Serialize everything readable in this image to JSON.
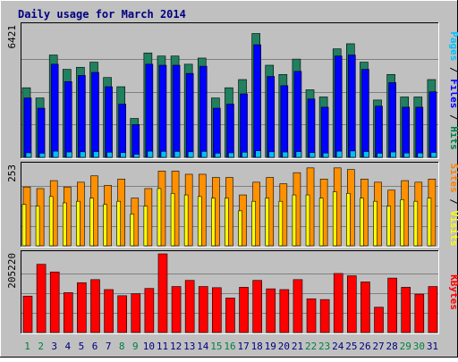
{
  "chart_data": {
    "title": "Daily usage for March 2014",
    "type": "bar",
    "x": [
      "1",
      "2",
      "3",
      "4",
      "5",
      "6",
      "7",
      "8",
      "9",
      "10",
      "11",
      "12",
      "13",
      "14",
      "15",
      "16",
      "17",
      "18",
      "19",
      "20",
      "21",
      "22",
      "23",
      "24",
      "25",
      "26",
      "27",
      "28",
      "29",
      "30",
      "31"
    ],
    "weekend_days": [
      1,
      2,
      8,
      9,
      15,
      16,
      22,
      23,
      29,
      30
    ],
    "weekend_color": "#008040",
    "weekday_color": "#000080",
    "panels": [
      {
        "id": "top",
        "max_label": "6421",
        "ylim": [
          0,
          6421
        ],
        "labels": [
          {
            "text": "Pages",
            "color": "#00C0FF"
          },
          {
            "text": "Files",
            "color": "#0000FF"
          },
          {
            "text": "Hits",
            "color": "#008040"
          }
        ],
        "series": [
          {
            "name": "Hits",
            "color": "#208060",
            "values": [
              3400,
              2900,
              5000,
              4300,
              4400,
              4650,
              3900,
              3450,
              1900,
              5100,
              4950,
              4950,
              4550,
              4850,
              2900,
              3400,
              3800,
              6050,
              4500,
              4050,
              4800,
              3300,
              2950,
              5300,
              5550,
              4650,
              2800,
              4050,
              2950,
              2950,
              3800
            ]
          },
          {
            "name": "Files",
            "color": "#0000FF",
            "values": [
              2900,
              2400,
              4550,
              3700,
              4000,
              4150,
              3450,
              2600,
              1600,
              4550,
              4500,
              4500,
              4100,
              4450,
              2400,
              2600,
              3100,
              5500,
              3950,
              3500,
              4200,
              2850,
              2450,
              4950,
              5000,
              4300,
              2500,
              3650,
              2450,
              2450,
              3200
            ]
          },
          {
            "name": "Pages",
            "color": "#00C0FF",
            "values": [
              220,
              200,
              300,
              260,
              270,
              280,
              250,
              230,
              150,
              300,
              290,
              290,
              270,
              290,
              200,
              220,
              250,
              320,
              270,
              260,
              280,
              230,
              210,
              300,
              310,
              280,
              200,
              260,
              210,
              210,
              240
            ]
          }
        ]
      },
      {
        "id": "middle",
        "max_label": "253",
        "ylim": [
          0,
          253
        ],
        "labels": [
          {
            "text": "Sites",
            "color": "#FF8000"
          },
          {
            "text": "Visits",
            "color": "#FFFF00"
          }
        ],
        "series": [
          {
            "name": "Visits",
            "color": "#FF9000",
            "values": [
              185,
              180,
              205,
              185,
              200,
              220,
              190,
              210,
              150,
              180,
              235,
              235,
              225,
              225,
              215,
              215,
              160,
              200,
              215,
              195,
              230,
              245,
              210,
              245,
              240,
              210,
              200,
              175,
              205,
              200,
              210
            ]
          },
          {
            "name": "Sites",
            "color": "#FFFF00",
            "values": [
              130,
              125,
              155,
              135,
              140,
              150,
              130,
              140,
              100,
              125,
              180,
              165,
              160,
              155,
              150,
              150,
              110,
              140,
              150,
              140,
              160,
              160,
              150,
              170,
              165,
              150,
              140,
              125,
              145,
              140,
              150
            ]
          }
        ]
      },
      {
        "id": "bottom",
        "max_label": "205220",
        "ylim": [
          0,
          205220
        ],
        "labels": [
          {
            "text": "KBytes",
            "color": "#FF0000"
          }
        ],
        "series": [
          {
            "name": "KBytes",
            "color": "#FF0000",
            "values": [
              95000,
              178000,
              158000,
              104000,
              130000,
              138000,
              112000,
              96000,
              101000,
              115000,
              205220,
              120000,
              136000,
              120000,
              117000,
              90000,
              118000,
              136000,
              114000,
              112000,
              138000,
              88000,
              86000,
              154000,
              148000,
              132000,
              66000,
              142000,
              118000,
              100000,
              120000
            ]
          }
        ]
      }
    ]
  }
}
